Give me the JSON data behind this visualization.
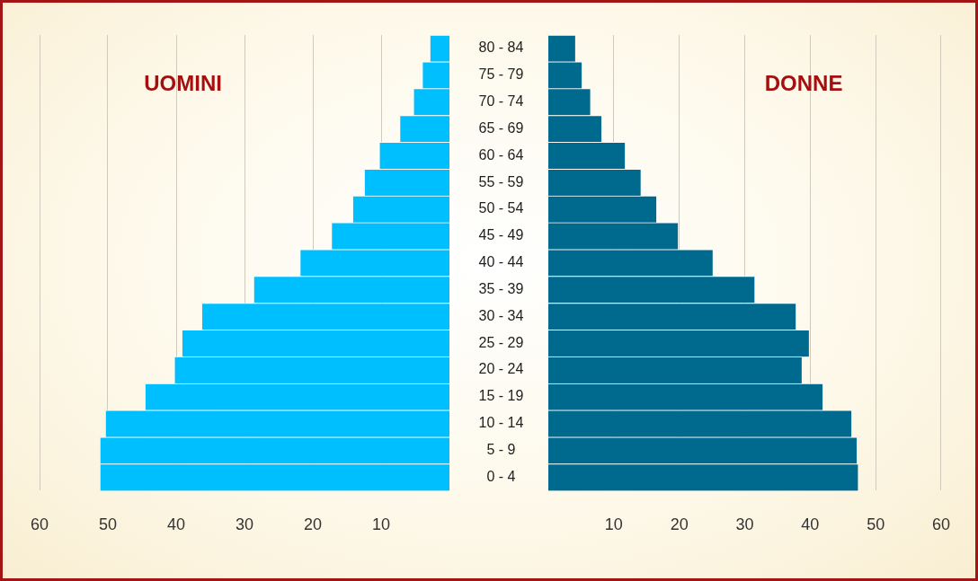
{
  "chart_data": [
    {
      "type": "bar",
      "orientation": "horizontal",
      "annotations": [
        "UOMINI"
      ],
      "categories": [
        "80 - 84",
        "75 - 79",
        "70 - 74",
        "65 - 69",
        "60 - 64",
        "55 - 59",
        "50 - 54",
        "45 - 49",
        "40 - 44",
        "35 - 39",
        "30 - 34",
        "25 - 29",
        "20 - 24",
        "15 - 19",
        "10 - 14",
        "5 - 9",
        "0 - 4"
      ],
      "values": [
        2.8,
        3.9,
        5.2,
        7.2,
        10.2,
        12.4,
        14.1,
        17.2,
        21.8,
        28.6,
        36.2,
        39.1,
        40.2,
        44.5,
        50.3,
        51.1,
        51.1
      ],
      "color": "#00bfff",
      "xlim": [
        60,
        0
      ],
      "xticks": [
        60,
        50,
        40,
        30,
        20,
        10
      ],
      "grid": "x"
    },
    {
      "type": "bar",
      "orientation": "horizontal",
      "annotations": [
        "DONNE"
      ],
      "categories": [
        null,
        null,
        null,
        null,
        null,
        null,
        null,
        null,
        null,
        null,
        null,
        null,
        null,
        null,
        null,
        null,
        null
      ],
      "values": [
        4.1,
        5.1,
        6.4,
        8.1,
        11.7,
        14.1,
        16.5,
        19.8,
        25.1,
        31.5,
        37.8,
        39.8,
        38.7,
        41.9,
        46.3,
        47.1,
        47.3
      ],
      "color": "#006a8e",
      "xlim": [
        0,
        60
      ],
      "xticks": [
        10,
        20,
        30,
        40,
        50,
        60
      ],
      "grid": "x",
      "tick_labels": "x"
    }
  ]
}
